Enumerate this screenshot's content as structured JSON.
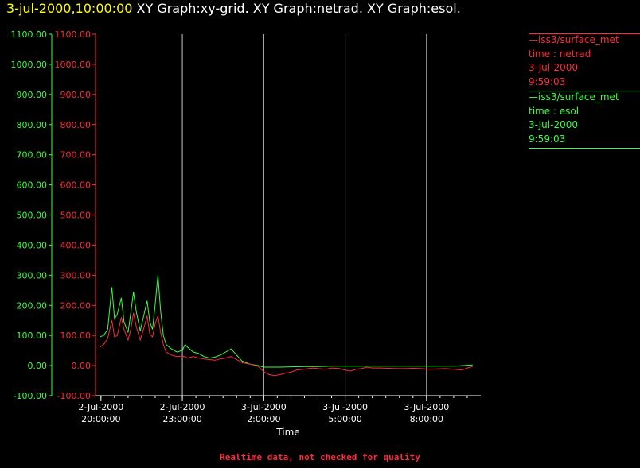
{
  "title": {
    "timestamp": "3-jul-2000,10:00:00",
    "text": " XY Graph:xy-grid.  XY Graph:netrad.  XY Graph:esol."
  },
  "colors": {
    "netrad": "#ff2a3a",
    "esol": "#3aff3a",
    "grid": "#c8c8c8",
    "axis": "#ffffff",
    "background": "#000000"
  },
  "legend": [
    {
      "line1": "—iss3/surface_met",
      "line2": "time : netrad",
      "line3": "3-Jul-2000",
      "line4": "9:59:03",
      "color": "#ff2a3a"
    },
    {
      "line1": "—iss3/surface_met",
      "line2": "time : esol",
      "line3": "3-Jul-2000",
      "line4": "9:59:03",
      "color": "#3aff3a"
    }
  ],
  "footer": "Realtime data, not checked for quality",
  "chart_data": {
    "type": "line",
    "xlabel": "Time",
    "x_unit": "hours from 2-Jul-2000 20:00:00",
    "xlim": [
      -0.2,
      14.0
    ],
    "ylim": [
      -100,
      1100
    ],
    "yticks": [
      -100,
      0,
      100,
      200,
      300,
      400,
      500,
      600,
      700,
      800,
      900,
      1000,
      1100
    ],
    "ytick_labels": [
      "-100.00",
      "0.00",
      "100.00",
      "200.00",
      "300.00",
      "400.00",
      "500.00",
      "600.00",
      "700.00",
      "800.00",
      "900.00",
      "1000.00",
      "1100.00"
    ],
    "xticks": [
      {
        "x": 0,
        "line1": "2-Jul-2000",
        "line2": "20:00:00"
      },
      {
        "x": 3,
        "line1": "2-Jul-2000",
        "line2": "23:00:00"
      },
      {
        "x": 6,
        "line1": "3-Jul-2000",
        "line2": "2:00:00"
      },
      {
        "x": 9,
        "line1": "3-Jul-2000",
        "line2": "5:00:00"
      },
      {
        "x": 12,
        "line1": "3-Jul-2000",
        "line2": "8:00:00"
      }
    ],
    "vertical_grid_at": [
      3,
      6,
      9,
      12
    ],
    "series": [
      {
        "name": "netrad",
        "color": "#ff2a3a",
        "points": [
          [
            -0.05,
            60
          ],
          [
            0.1,
            70
          ],
          [
            0.25,
            90
          ],
          [
            0.4,
            150
          ],
          [
            0.5,
            95
          ],
          [
            0.6,
            100
          ],
          [
            0.75,
            160
          ],
          [
            0.85,
            120
          ],
          [
            1.0,
            85
          ],
          [
            1.1,
            120
          ],
          [
            1.2,
            175
          ],
          [
            1.3,
            130
          ],
          [
            1.45,
            85
          ],
          [
            1.6,
            130
          ],
          [
            1.7,
            165
          ],
          [
            1.8,
            105
          ],
          [
            1.9,
            95
          ],
          [
            2.0,
            140
          ],
          [
            2.1,
            165
          ],
          [
            2.2,
            110
          ],
          [
            2.3,
            70
          ],
          [
            2.4,
            45
          ],
          [
            2.6,
            35
          ],
          [
            2.8,
            30
          ],
          [
            3.0,
            32
          ],
          [
            3.2,
            25
          ],
          [
            3.4,
            30
          ],
          [
            3.6,
            25
          ],
          [
            3.8,
            22
          ],
          [
            4.0,
            20
          ],
          [
            4.2,
            18
          ],
          [
            4.4,
            22
          ],
          [
            4.6,
            25
          ],
          [
            4.8,
            30
          ],
          [
            5.0,
            20
          ],
          [
            5.2,
            10
          ],
          [
            5.5,
            5
          ],
          [
            5.8,
            -3
          ],
          [
            6.0,
            -20
          ],
          [
            6.2,
            -30
          ],
          [
            6.4,
            -33
          ],
          [
            6.6,
            -30
          ],
          [
            6.8,
            -25
          ],
          [
            7.0,
            -22
          ],
          [
            7.2,
            -15
          ],
          [
            7.5,
            -12
          ],
          [
            7.8,
            -8
          ],
          [
            8.0,
            -10
          ],
          [
            8.3,
            -12
          ],
          [
            8.5,
            -8
          ],
          [
            8.8,
            -10
          ],
          [
            9.0,
            -15
          ],
          [
            9.2,
            -18
          ],
          [
            9.4,
            -12
          ],
          [
            9.6,
            -10
          ],
          [
            9.8,
            -5
          ],
          [
            10.0,
            -8
          ],
          [
            10.3,
            -8
          ],
          [
            10.6,
            -9
          ],
          [
            10.9,
            -10
          ],
          [
            11.2,
            -10
          ],
          [
            11.5,
            -9
          ],
          [
            11.8,
            -10
          ],
          [
            12.1,
            -12
          ],
          [
            12.4,
            -11
          ],
          [
            12.7,
            -10
          ],
          [
            13.0,
            -12
          ],
          [
            13.3,
            -15
          ],
          [
            13.5,
            -8
          ],
          [
            13.7,
            -3
          ]
        ]
      },
      {
        "name": "esol",
        "color": "#3aff3a",
        "points": [
          [
            -0.05,
            95
          ],
          [
            0.1,
            100
          ],
          [
            0.25,
            120
          ],
          [
            0.4,
            260
          ],
          [
            0.5,
            155
          ],
          [
            0.6,
            170
          ],
          [
            0.75,
            225
          ],
          [
            0.85,
            145
          ],
          [
            1.0,
            110
          ],
          [
            1.1,
            175
          ],
          [
            1.2,
            245
          ],
          [
            1.3,
            180
          ],
          [
            1.45,
            115
          ],
          [
            1.6,
            175
          ],
          [
            1.7,
            215
          ],
          [
            1.8,
            145
          ],
          [
            1.9,
            120
          ],
          [
            2.0,
            205
          ],
          [
            2.1,
            300
          ],
          [
            2.2,
            180
          ],
          [
            2.3,
            100
          ],
          [
            2.4,
            70
          ],
          [
            2.6,
            55
          ],
          [
            2.8,
            45
          ],
          [
            3.0,
            50
          ],
          [
            3.1,
            70
          ],
          [
            3.2,
            60
          ],
          [
            3.4,
            45
          ],
          [
            3.6,
            40
          ],
          [
            3.8,
            30
          ],
          [
            4.0,
            25
          ],
          [
            4.2,
            28
          ],
          [
            4.4,
            35
          ],
          [
            4.6,
            45
          ],
          [
            4.8,
            55
          ],
          [
            5.0,
            35
          ],
          [
            5.2,
            15
          ],
          [
            5.5,
            5
          ],
          [
            5.8,
            0
          ],
          [
            6.0,
            -5
          ],
          [
            6.3,
            -5
          ],
          [
            6.6,
            -5
          ],
          [
            7.0,
            -4
          ],
          [
            7.5,
            -3
          ],
          [
            8.0,
            -3
          ],
          [
            8.5,
            -2
          ],
          [
            9.0,
            -2
          ],
          [
            9.5,
            -2
          ],
          [
            10.0,
            -2
          ],
          [
            10.5,
            -2
          ],
          [
            11.0,
            -2
          ],
          [
            11.5,
            -2
          ],
          [
            12.0,
            -2
          ],
          [
            12.5,
            -2
          ],
          [
            13.0,
            -2
          ],
          [
            13.3,
            0
          ],
          [
            13.7,
            2
          ]
        ]
      }
    ]
  }
}
